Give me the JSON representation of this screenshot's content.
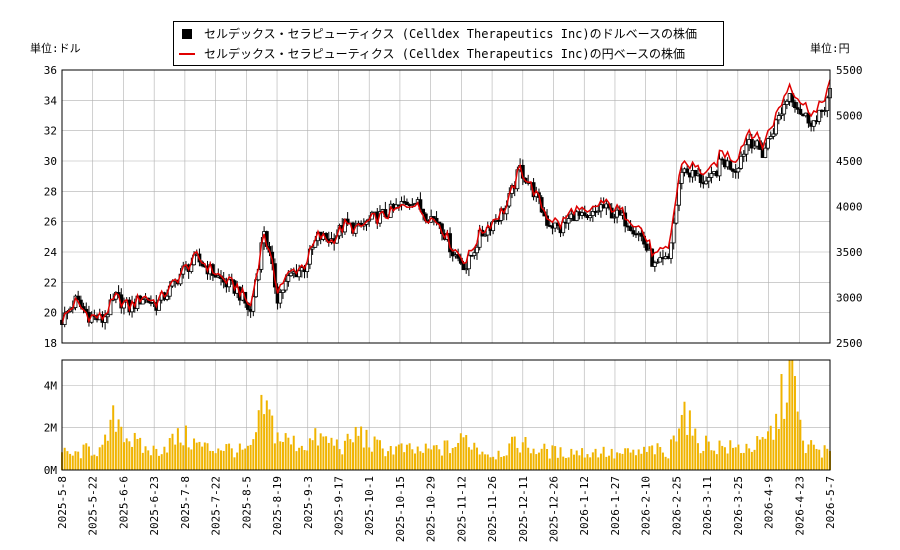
{
  "legend": {
    "usd_label": "セルデックス・セラピューティクス (Celldex Therapeutics Inc)のドルベースの株価",
    "jpy_label": "セルデックス・セラピューティクス (Celldex Therapeutics Inc)の円ベースの株価"
  },
  "units": {
    "left": "単位:ドル",
    "right": "単位:円"
  },
  "colors": {
    "usd_candles": "#000000",
    "jpy_line": "#e00000",
    "volume": "#f0b400",
    "grid": "#b0b0b0"
  },
  "chart_data": [
    {
      "type": "candlestick",
      "series": [
        {
          "name": "セルデックス・セラピューティクス (Celldex Therapeutics Inc)のドルベースの株価",
          "axis": "left"
        },
        {
          "name": "セルデックス・セラピューティクス (Celldex Therapeutics Inc)の円ベースの株価",
          "axis": "right",
          "style": "line"
        }
      ],
      "y_left": {
        "ticks": [
          18,
          20,
          22,
          24,
          26,
          28,
          30,
          32,
          34,
          36
        ],
        "range": [
          18,
          36
        ]
      },
      "y_right": {
        "ticks": [
          2500,
          3000,
          3500,
          4000,
          4500,
          5000,
          5500
        ],
        "range": [
          2500,
          5500
        ]
      },
      "grid": true,
      "weekly_close_usd": [
        19.5,
        20.8,
        19.8,
        19.5,
        21.0,
        20.3,
        21.0,
        20.5,
        21.5,
        22.8,
        23.5,
        22.8,
        22.0,
        21.5,
        20.0,
        25.5,
        21.0,
        22.5,
        23.0,
        25.0,
        24.8,
        25.8,
        25.5,
        26.2,
        26.5,
        27.0,
        27.5,
        26.5,
        26.0,
        24.0,
        23.0,
        25.0,
        26.0,
        27.0,
        29.5,
        28.0,
        26.0,
        25.5,
        26.5,
        26.0,
        27.0,
        26.5,
        26.0,
        25.0,
        23.0,
        23.5,
        29.5,
        29.0,
        28.5,
        30.0,
        29.5,
        31.5,
        30.5,
        32.5,
        34.5,
        33.0,
        32.5,
        34.5
      ],
      "weekly_close_jpy": [
        2750,
        2950,
        2800,
        2780,
        3000,
        2900,
        3020,
        2950,
        3100,
        3300,
        3450,
        3320,
        3200,
        3120,
        2900,
        3720,
        3100,
        3280,
        3360,
        3680,
        3620,
        3800,
        3750,
        3860,
        3900,
        3970,
        4050,
        3900,
        3820,
        3550,
        3400,
        3700,
        3850,
        4000,
        4420,
        4180,
        3900,
        3800,
        3980,
        3900,
        4050,
        3980,
        3900,
        3750,
        3450,
        3530,
        4500,
        4430,
        4350,
        4600,
        4520,
        4850,
        4680,
        5000,
        5350,
        5120,
        5020,
        5350
      ]
    },
    {
      "type": "bar",
      "y_ticks": [
        "0M",
        "2M",
        "4M"
      ],
      "range": [
        0,
        5200000
      ],
      "weekly_volume": [
        0.8,
        0.7,
        1.0,
        0.9,
        2.6,
        1.5,
        1.0,
        0.9,
        1.3,
        1.6,
        1.2,
        1.0,
        1.1,
        0.9,
        0.9,
        3.0,
        1.6,
        1.3,
        1.2,
        1.5,
        1.3,
        1.1,
        1.8,
        1.2,
        1.0,
        1.0,
        0.9,
        0.9,
        1.0,
        1.1,
        1.5,
        1.0,
        0.7,
        1.0,
        1.3,
        1.0,
        0.9,
        0.8,
        0.9,
        0.8,
        0.9,
        0.7,
        0.8,
        0.8,
        1.0,
        0.6,
        3.2,
        1.4,
        1.2,
        1.1,
        1.0,
        1.1,
        1.2,
        2.1,
        5.0,
        1.2,
        1.0,
        0.8
      ],
      "x_ticks": [
        "2025-5-8",
        "2025-5-22",
        "2025-6-6",
        "2025-6-23",
        "2025-7-8",
        "2025-7-22",
        "2025-8-5",
        "2025-8-19",
        "2025-9-3",
        "2025-9-17",
        "2025-10-1",
        "2025-10-15",
        "2025-10-29",
        "2025-11-12",
        "2025-11-26",
        "2025-12-11",
        "2025-12-26",
        "2026-1-12",
        "2026-1-27",
        "2026-2-10",
        "2026-2-25",
        "2026-3-11",
        "2026-3-25",
        "2026-4-9",
        "2026-4-23",
        "2026-5-7"
      ]
    }
  ]
}
